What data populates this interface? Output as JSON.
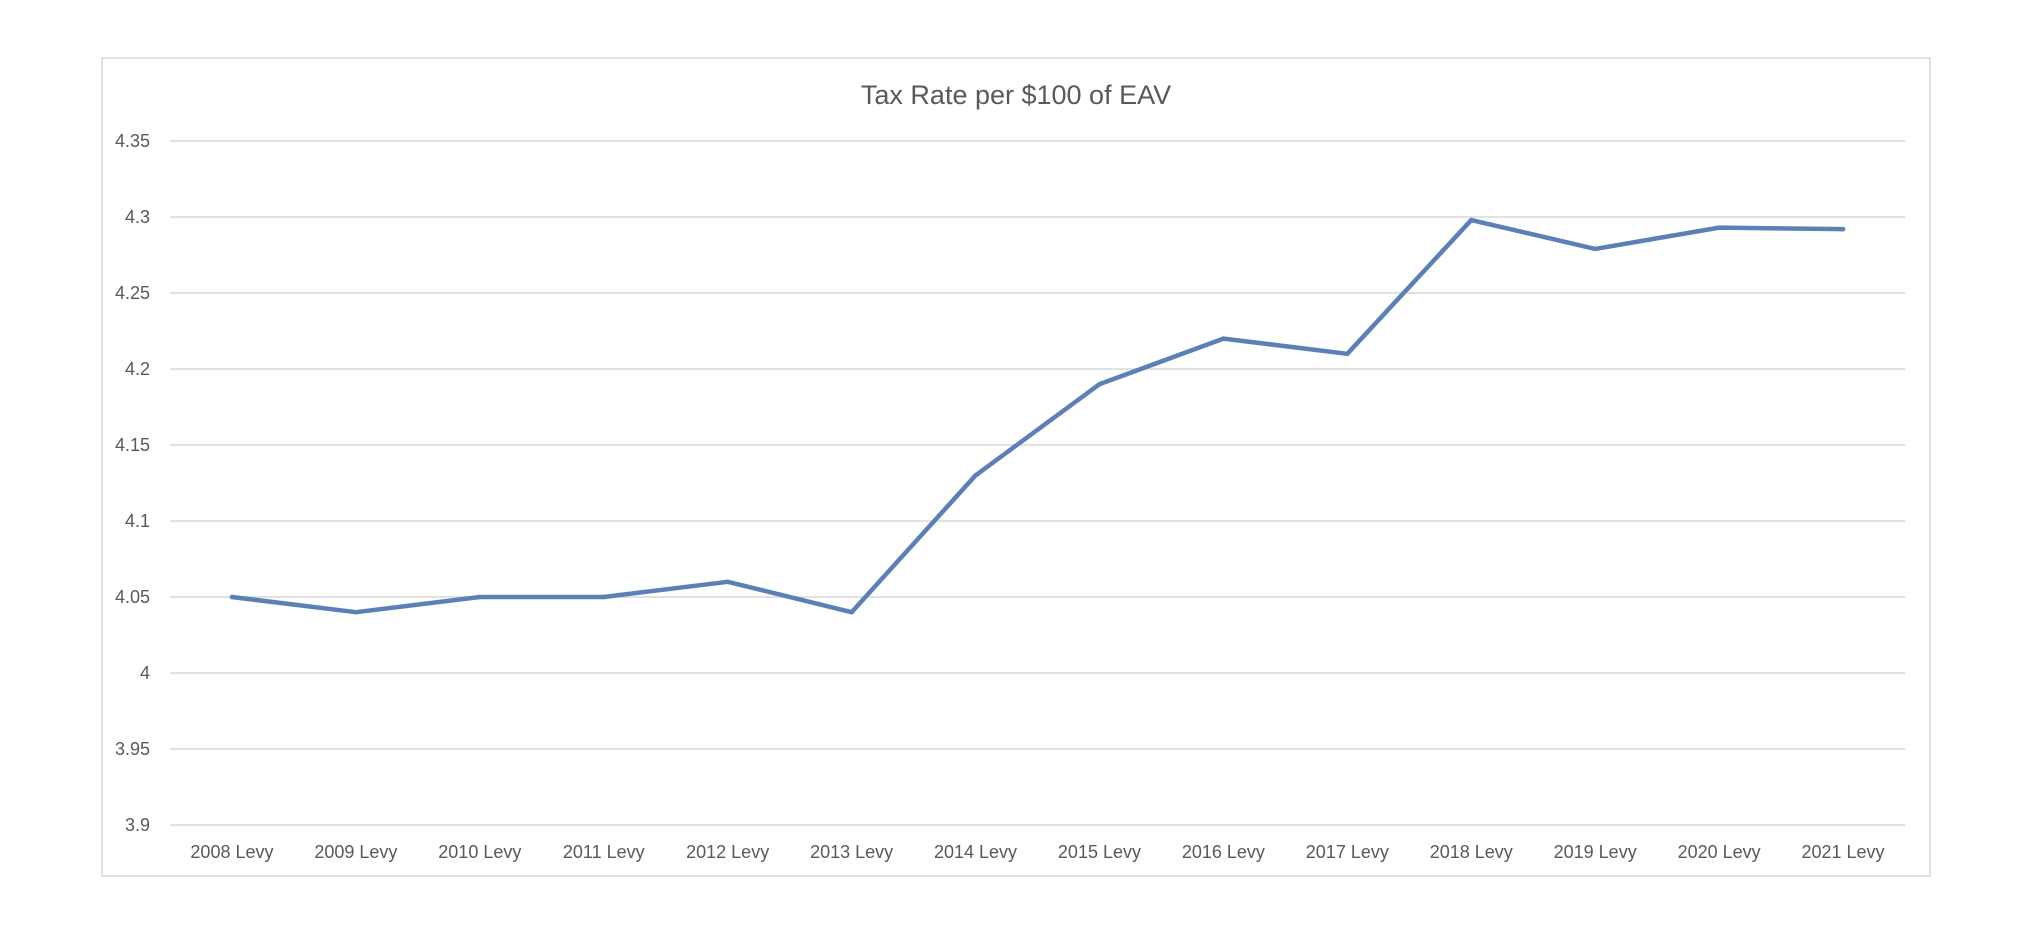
{
  "chart_data": {
    "type": "line",
    "title": "Tax Rate per $100 of EAV",
    "xlabel": "",
    "ylabel": "",
    "categories": [
      "2008 Levy",
      "2009 Levy",
      "2010 Levy",
      "2011 Levy",
      "2012 Levy",
      "2013 Levy",
      "2014 Levy",
      "2015 Levy",
      "2016 Levy",
      "2017 Levy",
      "2018 Levy",
      "2019 Levy",
      "2020 Levy",
      "2021 Levy"
    ],
    "series": [
      {
        "values": [
          4.05,
          4.04,
          4.05,
          4.05,
          4.06,
          4.04,
          4.13,
          4.19,
          4.22,
          4.21,
          4.298,
          4.279,
          4.293,
          4.292
        ],
        "color": "#5b80b8"
      }
    ],
    "ylim": [
      3.9,
      4.35
    ],
    "y_ticks": [
      "3.9",
      "3.95",
      "4",
      "4.05",
      "4.1",
      "4.15",
      "4.2",
      "4.25",
      "4.3",
      "4.35"
    ],
    "grid": true,
    "legend": "none",
    "colors": {
      "border": "#d9d9d9",
      "grid": "#d9d9d9",
      "text": "#595959"
    }
  }
}
